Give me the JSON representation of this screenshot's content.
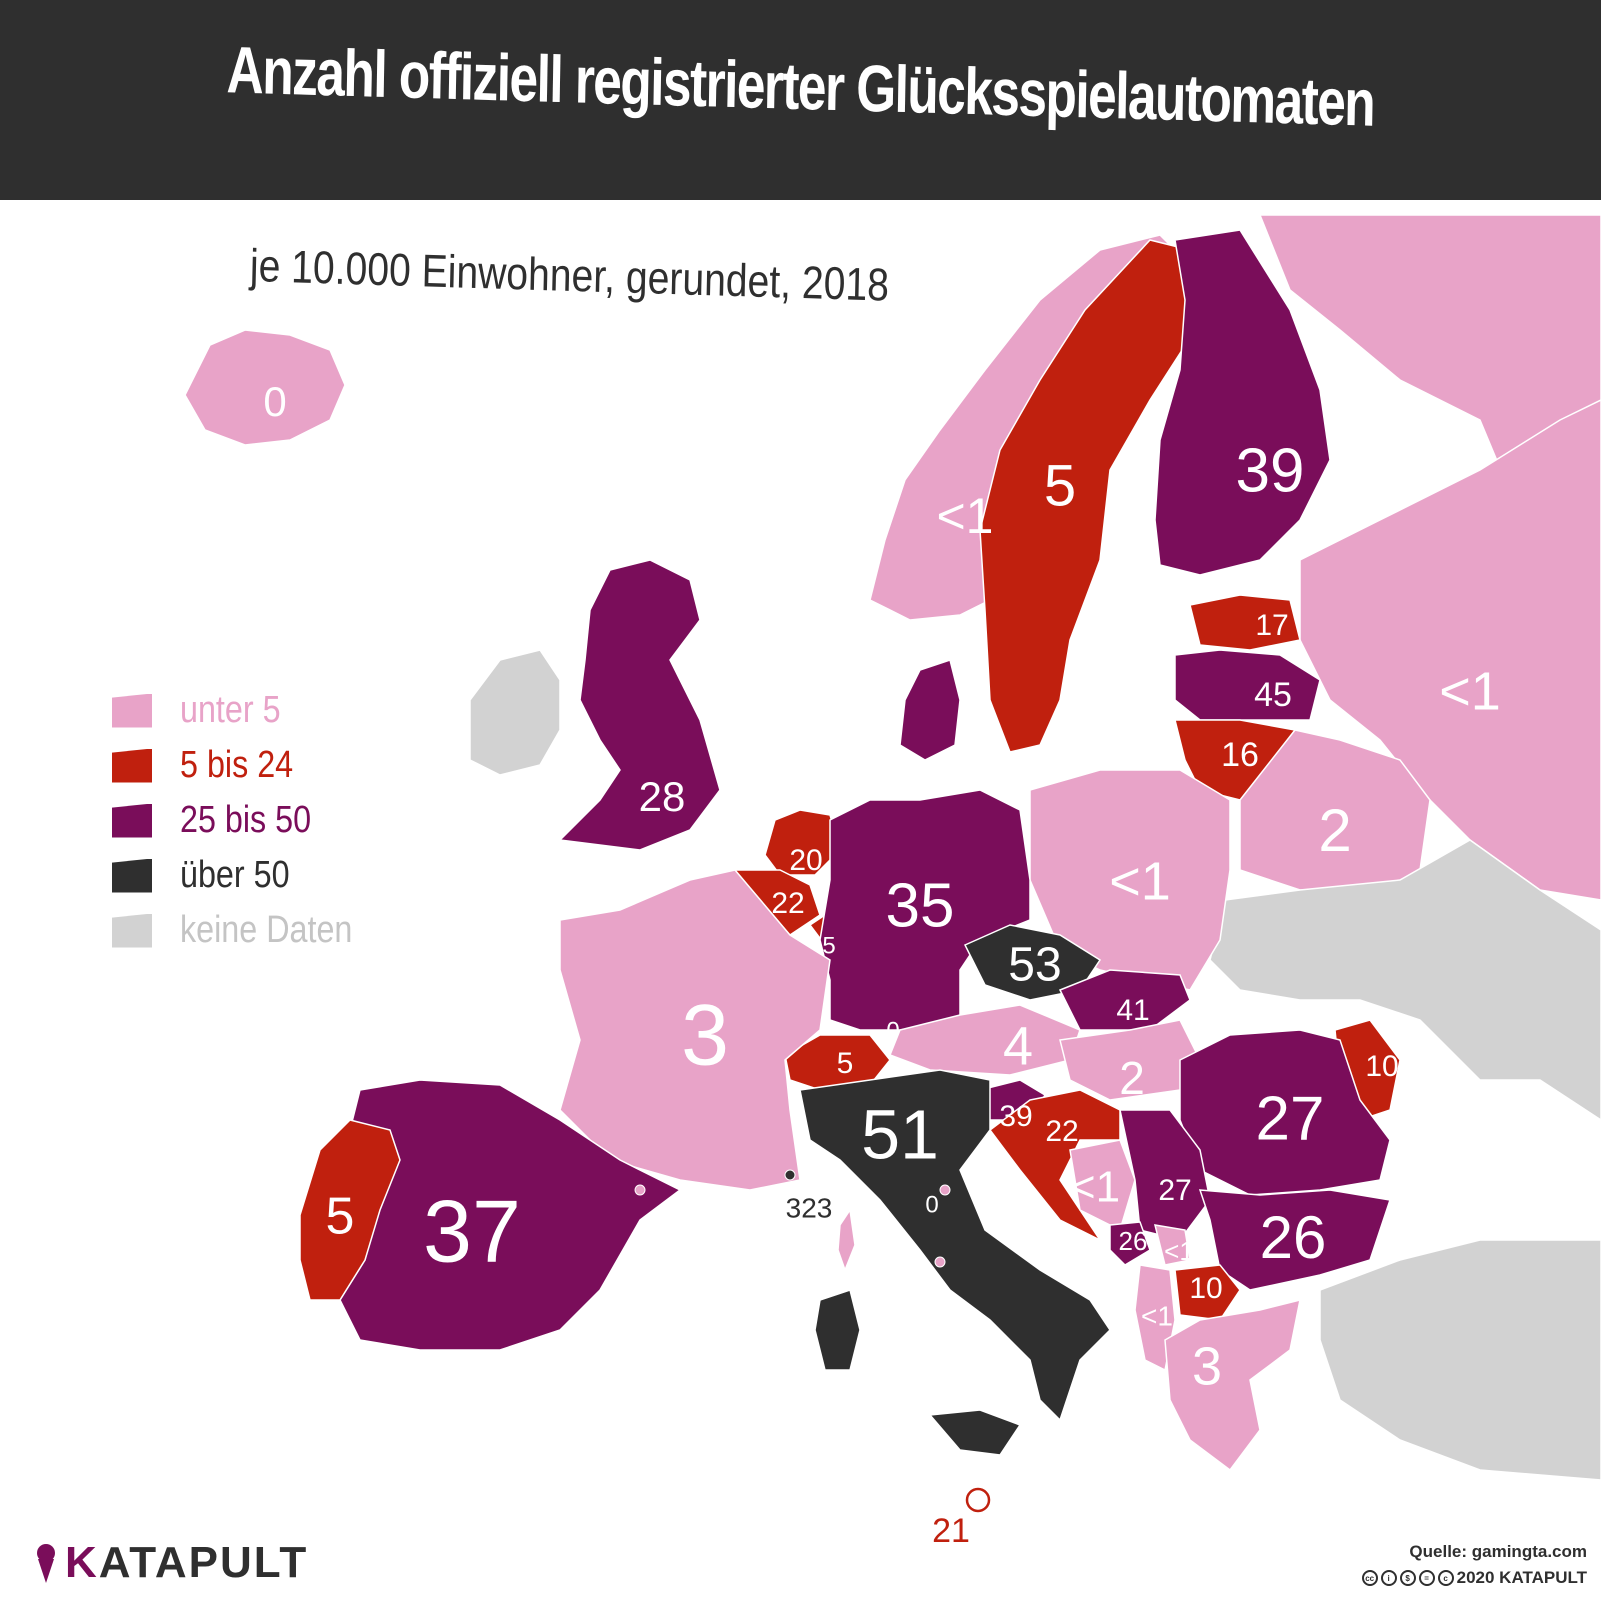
{
  "title": "Anzahl offiziell registrierter Glücksspielautomaten",
  "subtitle": "je 10.000 Einwohner, gerundet, 2018",
  "colors": {
    "unter_5": "#e8a3c8",
    "5_bis_24": "#c0200e",
    "25_bis_50": "#7a0d5a",
    "ueber_50": "#2f2f2f",
    "keine_daten": "#d2d2d2",
    "water": "#ffffff",
    "title_bar": "#2f2f2f"
  },
  "legend": [
    {
      "label": "unter 5",
      "color": "#e8a3c8",
      "text_color": "#e8a3c8"
    },
    {
      "label": "5 bis 24",
      "color": "#c0200e",
      "text_color": "#c0200e"
    },
    {
      "label": "25 bis 50",
      "color": "#7a0d5a",
      "text_color": "#7a0d5a"
    },
    {
      "label": "über 50",
      "color": "#2f2f2f",
      "text_color": "#2f2f2f"
    },
    {
      "label": "keine Daten",
      "color": "#d2d2d2",
      "text_color": "#c4c4c4"
    }
  ],
  "values": {
    "iceland": "0",
    "norway": "<1",
    "sweden": "5",
    "finland": "39",
    "estonia": "17",
    "latvia": "45",
    "lithuania": "16",
    "russia": "<1",
    "belarus": "2",
    "poland": "<1",
    "uk": "28",
    "netherlands": "20",
    "belgium": "22",
    "luxembourg": "5",
    "germany": "35",
    "czechia": "53",
    "slovakia": "41",
    "austria": "4",
    "liechtenstein": "0",
    "switzerland": "5",
    "hungary": "2",
    "moldova": "10",
    "romania": "27",
    "slovenia": "39",
    "croatia": "22",
    "bosnia": "<1",
    "serbia": "27",
    "montenegro": "26",
    "kosovo": "<1",
    "bulgaria": "26",
    "north_macedonia": "10",
    "albania": "<1",
    "greece": "3",
    "france": "3",
    "spain": "37",
    "portugal": "5",
    "italy": "51",
    "monaco": "323",
    "san_marino": "0",
    "malta": "21"
  },
  "branding": {
    "logo": "KATAPULT",
    "source": "Quelle: gamingta.com",
    "copyright": "2020 KATAPULT"
  }
}
